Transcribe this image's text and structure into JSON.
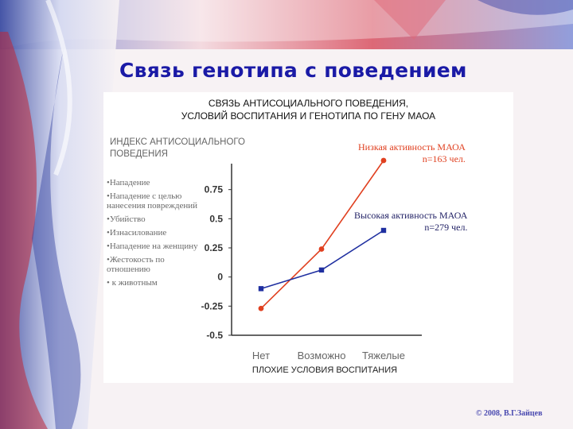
{
  "slide": {
    "title": "Связь генотипа с поведением",
    "copyright": "© 2008, В.Г.Зайцев"
  },
  "colors": {
    "title": "#1a1aa6",
    "low_series": "#e04020",
    "high_series": "#1f2fa0",
    "axis": "#333333"
  },
  "chart_data": {
    "type": "line",
    "title_lines": [
      "СВЯЗЬ АНТИСОЦИАЛЬНОГО ПОВЕДЕНИЯ,",
      "УСЛОВИЙ ВОСПИТАНИЯ И ГЕНОТИПА ПО ГЕНУ МАОА"
    ],
    "ylabel_lines": [
      "ИНДЕКС АНТИСОЦИАЛЬНОГО",
      "ПОВЕДЕНИЯ"
    ],
    "xlabel": "ПЛОХИЕ УСЛОВИЯ ВОСПИТАНИЯ",
    "categories": [
      "Нет",
      "Возможно",
      "Тяжелые"
    ],
    "ylim": [
      -0.5,
      1.0
    ],
    "yticks": [
      {
        "value": 0.75,
        "label": "0.75"
      },
      {
        "value": 0.5,
        "label": "0.5"
      },
      {
        "value": 0.25,
        "label": "0.25"
      },
      {
        "value": 0,
        "label": "0"
      },
      {
        "value": -0.25,
        "label": "-0.25"
      },
      {
        "value": -0.5,
        "label": "-0.5"
      }
    ],
    "grid": false,
    "series": [
      {
        "label_lines": [
          "Низкая активность МАОА",
          "n=163 чел."
        ],
        "values": [
          -0.27,
          0.24,
          1.0
        ],
        "marker": "circle",
        "color": "#e04020"
      },
      {
        "label_lines": [
          "Высокая активность МАОА",
          "n=279 чел."
        ],
        "values": [
          -0.1,
          0.06,
          0.4
        ],
        "marker": "square",
        "color": "#1f2fa0"
      }
    ],
    "behaviors": [
      [
        "•Нападение"
      ],
      [
        "•Нападение с целью",
        "нанесения   повреждений"
      ],
      [
        "•Убийство"
      ],
      [
        "•Изнасилование"
      ],
      [
        "•Нападение на женщину"
      ],
      [
        "•Жестокость по",
        "отношению"
      ],
      [
        "•  к животным"
      ]
    ]
  }
}
